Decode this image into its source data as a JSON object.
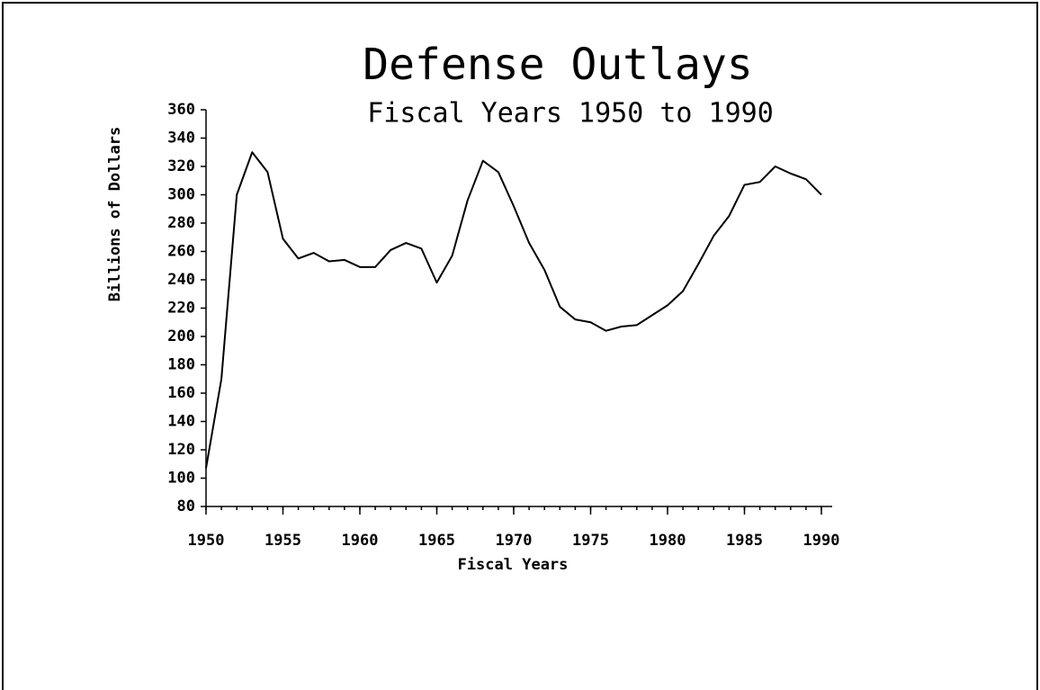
{
  "chart_data": {
    "type": "line",
    "title": "Defense Outlays",
    "subtitle": "Fiscal Years 1950 to 1990",
    "x_label": "Fiscal Years",
    "y_label": "Billions of Dollars",
    "x": [
      1950,
      1951,
      1952,
      1953,
      1954,
      1955,
      1956,
      1957,
      1958,
      1959,
      1960,
      1961,
      1962,
      1963,
      1964,
      1965,
      1966,
      1967,
      1968,
      1969,
      1970,
      1971,
      1972,
      1973,
      1974,
      1975,
      1976,
      1977,
      1978,
      1979,
      1980,
      1981,
      1982,
      1983,
      1984,
      1985,
      1986,
      1987,
      1988,
      1989,
      1990
    ],
    "series": [
      {
        "color": "#000000",
        "values": [
          107,
          170,
          300,
          330,
          316,
          269,
          255,
          259,
          253,
          254,
          249,
          249,
          261,
          266,
          262,
          238,
          257,
          296,
          324,
          316,
          292,
          266,
          247,
          221,
          212,
          210,
          204,
          207,
          208,
          215,
          222,
          232,
          251,
          271,
          285,
          307,
          309,
          320,
          315,
          311,
          300
        ]
      }
    ],
    "xlim": [
      1950,
      1990
    ],
    "xticks": [
      1950,
      1955,
      1960,
      1965,
      1970,
      1975,
      1980,
      1985,
      1990
    ],
    "ylim": [
      80,
      360
    ],
    "yticks": [
      80,
      100,
      120,
      140,
      160,
      180,
      200,
      220,
      240,
      260,
      280,
      300,
      320,
      340,
      360
    ],
    "grid": false
  }
}
